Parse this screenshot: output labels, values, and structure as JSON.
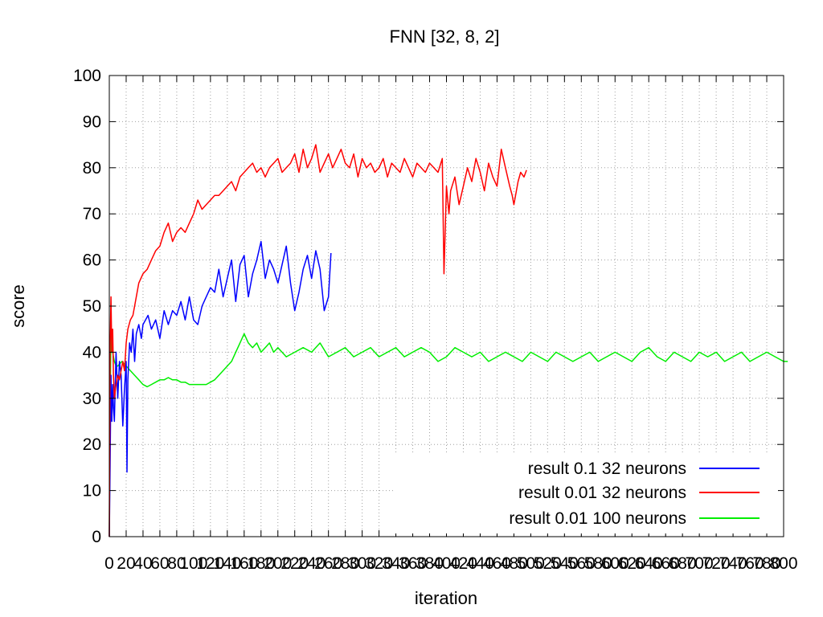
{
  "chart_data": {
    "type": "line",
    "title": "FNN [32, 8, 2]",
    "xlabel": "iteration",
    "ylabel": "score",
    "xlim": [
      0,
      800
    ],
    "ylim": [
      0,
      100
    ],
    "grid": true,
    "legend_position": "bottom-right",
    "x_ticks": [
      0,
      20,
      40,
      60,
      80,
      100,
      120,
      140,
      160,
      180,
      200,
      220,
      240,
      260,
      280,
      300,
      320,
      340,
      360,
      380,
      400,
      420,
      440,
      460,
      480,
      500,
      520,
      540,
      560,
      580,
      600,
      620,
      640,
      660,
      680,
      700,
      720,
      740,
      760,
      780,
      800
    ],
    "y_ticks": [
      0,
      10,
      20,
      30,
      40,
      50,
      60,
      70,
      80,
      90,
      100
    ],
    "series": [
      {
        "name": "result 0.1 32 neurons",
        "color": "#0000ff",
        "x": [
          0,
          1,
          2,
          3,
          4,
          5,
          6,
          8,
          10,
          12,
          14,
          16,
          18,
          20,
          21,
          22,
          24,
          26,
          28,
          30,
          32,
          35,
          38,
          40,
          43,
          46,
          50,
          55,
          60,
          65,
          70,
          75,
          80,
          85,
          90,
          95,
          100,
          105,
          110,
          115,
          120,
          125,
          130,
          135,
          140,
          145,
          150,
          155,
          160,
          165,
          170,
          175,
          180,
          185,
          190,
          195,
          200,
          205,
          210,
          215,
          220,
          225,
          230,
          235,
          240,
          245,
          250,
          255,
          260,
          263
        ],
        "y": [
          0,
          16,
          35,
          25,
          33,
          28,
          25,
          40,
          30,
          38,
          35,
          24,
          32,
          38,
          14,
          34,
          42,
          40,
          45,
          38,
          44,
          46,
          43,
          46,
          47,
          48,
          45,
          47,
          43,
          49,
          46,
          49,
          48,
          51,
          47,
          52,
          47,
          46,
          50,
          52,
          54,
          53,
          58,
          52,
          56,
          60,
          51,
          59,
          61,
          52,
          57,
          60,
          64,
          56,
          60,
          58,
          55,
          59,
          63,
          55,
          49,
          53,
          58,
          61,
          56,
          62,
          58,
          49,
          52,
          61.5
        ]
      },
      {
        "name": "result 0.01 32 neurons",
        "color": "#ff0000",
        "x": [
          0,
          1,
          2,
          3,
          4,
          5,
          6,
          8,
          10,
          12,
          14,
          16,
          18,
          20,
          22,
          25,
          28,
          30,
          35,
          40,
          45,
          50,
          55,
          60,
          65,
          70,
          75,
          80,
          85,
          90,
          95,
          100,
          105,
          110,
          115,
          120,
          125,
          130,
          135,
          140,
          145,
          150,
          155,
          160,
          165,
          170,
          175,
          180,
          185,
          190,
          195,
          200,
          205,
          210,
          215,
          220,
          225,
          230,
          235,
          240,
          245,
          250,
          255,
          260,
          265,
          270,
          275,
          280,
          285,
          290,
          295,
          300,
          305,
          310,
          315,
          320,
          325,
          330,
          335,
          340,
          345,
          350,
          355,
          360,
          365,
          370,
          375,
          380,
          385,
          390,
          395,
          397,
          400,
          403,
          405,
          410,
          415,
          420,
          425,
          430,
          435,
          440,
          445,
          450,
          455,
          460,
          465,
          470,
          475,
          478,
          480,
          485,
          488,
          492,
          495
        ],
        "y": [
          0,
          41,
          52,
          40,
          45,
          35,
          30,
          33,
          35,
          34,
          36,
          38,
          36,
          42,
          45,
          47,
          48,
          50,
          55,
          57,
          58,
          60,
          62,
          63,
          66,
          68,
          64,
          66,
          67,
          66,
          68,
          70,
          73,
          71,
          72,
          73,
          74,
          74,
          75,
          76,
          77,
          75,
          78,
          79,
          80,
          81,
          79,
          80,
          78,
          80,
          81,
          82,
          79,
          80,
          81,
          83,
          79,
          84,
          80,
          82,
          85,
          79,
          81,
          83,
          80,
          82,
          84,
          81,
          80,
          83,
          78,
          82,
          80,
          81,
          79,
          80,
          82,
          78,
          81,
          80,
          79,
          82,
          80,
          78,
          81,
          80,
          79,
          81,
          80,
          79,
          82,
          57,
          76,
          70,
          75,
          78,
          72,
          76,
          80,
          77,
          82,
          79,
          75,
          81,
          78,
          76,
          84,
          80,
          76,
          74,
          72,
          77,
          79,
          78,
          79.5
        ]
      },
      {
        "name": "result 0.01 100 neurons",
        "color": "#00ee00",
        "x": [
          0,
          1,
          2,
          3,
          4,
          5,
          6,
          8,
          10,
          15,
          20,
          25,
          30,
          35,
          40,
          45,
          50,
          55,
          60,
          65,
          70,
          75,
          80,
          85,
          90,
          95,
          100,
          105,
          110,
          115,
          120,
          125,
          130,
          135,
          140,
          145,
          150,
          155,
          160,
          165,
          170,
          175,
          180,
          185,
          190,
          195,
          200,
          210,
          220,
          230,
          240,
          250,
          260,
          270,
          280,
          290,
          300,
          310,
          320,
          330,
          340,
          350,
          360,
          370,
          380,
          390,
          400,
          410,
          420,
          430,
          440,
          450,
          460,
          470,
          480,
          490,
          500,
          510,
          520,
          530,
          540,
          550,
          560,
          570,
          580,
          590,
          600,
          610,
          620,
          630,
          640,
          650,
          660,
          670,
          680,
          690,
          700,
          710,
          720,
          730,
          740,
          750,
          760,
          770,
          780,
          790,
          800,
          805
        ],
        "y": [
          0,
          30,
          44,
          41,
          40,
          39,
          38,
          37,
          37,
          38,
          37,
          36,
          35,
          34,
          33,
          32.5,
          33,
          33.5,
          34,
          34,
          34.5,
          34,
          34,
          33.5,
          33.5,
          33,
          33,
          33,
          33,
          33,
          33.5,
          34,
          35,
          36,
          37,
          38,
          40,
          42,
          44,
          42,
          41,
          42,
          40,
          41,
          42,
          40,
          41,
          39,
          40,
          41,
          40,
          42,
          39,
          40,
          41,
          39,
          40,
          41,
          39,
          40,
          41,
          39,
          40,
          41,
          40,
          38,
          39,
          41,
          40,
          39,
          40,
          38,
          39,
          40,
          39,
          38,
          40,
          39,
          38,
          40,
          39,
          38,
          39,
          40,
          38,
          39,
          40,
          39,
          38,
          40,
          41,
          39,
          38,
          40,
          39,
          38,
          40,
          39,
          40,
          38,
          39,
          40,
          38,
          39,
          40,
          39,
          38,
          38
        ]
      }
    ]
  }
}
